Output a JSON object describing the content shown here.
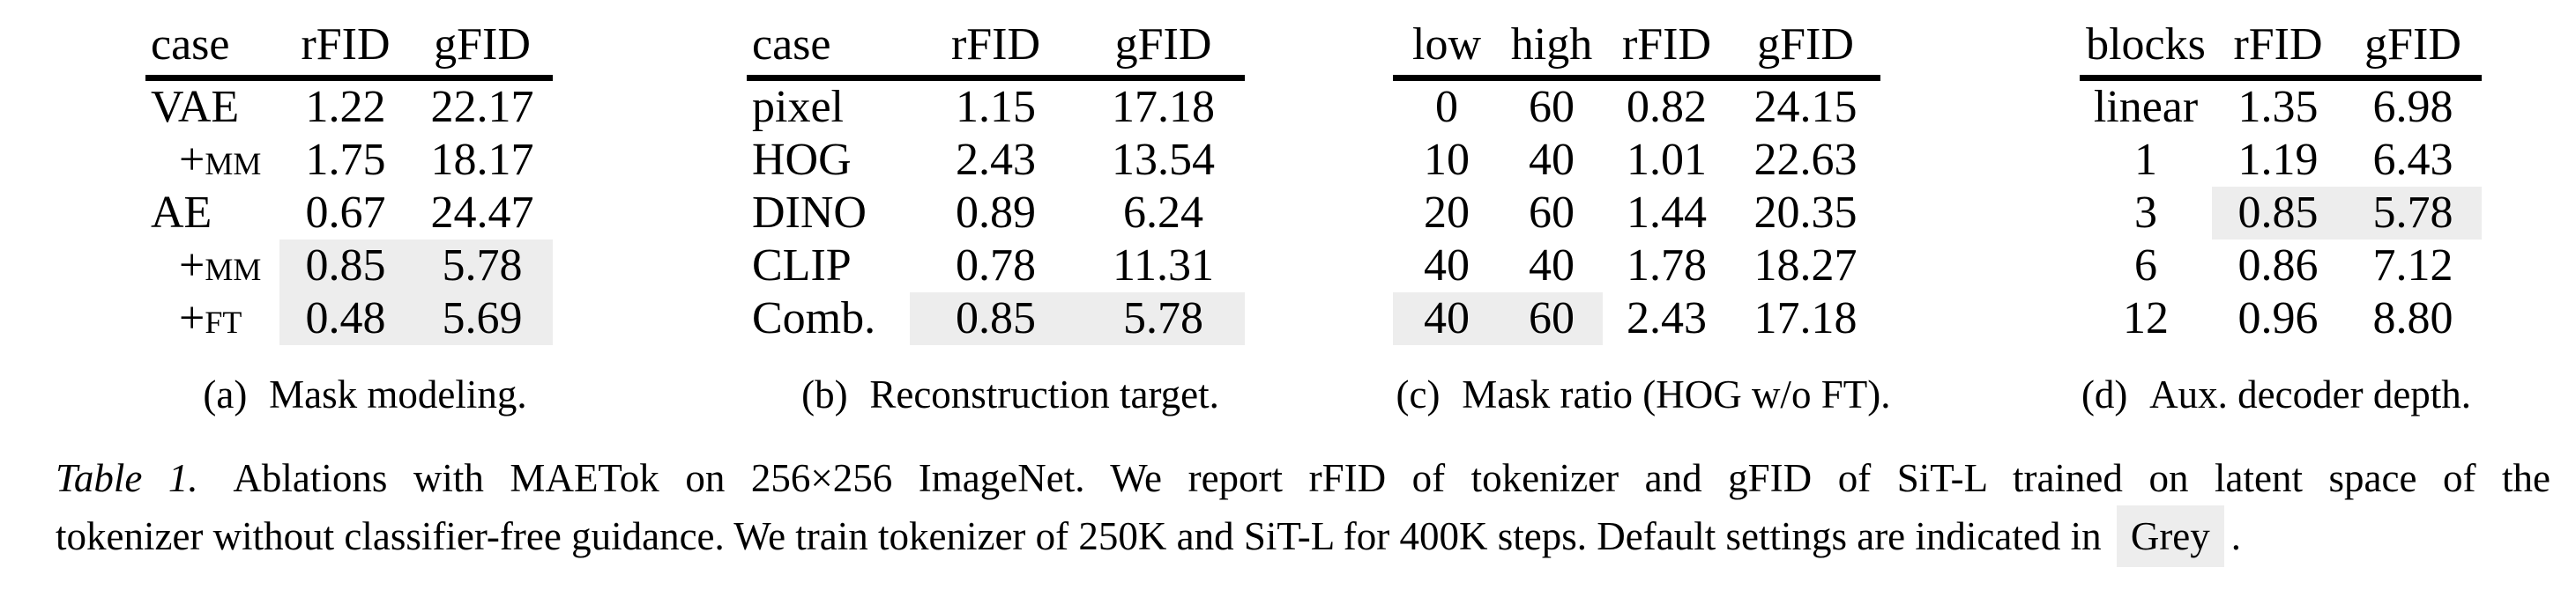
{
  "figure": {
    "subtables": [
      {
        "label": "(a)",
        "caption": "Mask modeling.",
        "headers": [
          "case",
          "rFID",
          "gFID"
        ],
        "rows": [
          [
            "VAE",
            "1.22",
            "22.17"
          ],
          [
            "+MM",
            "1.75",
            "18.17"
          ],
          [
            "AE",
            "0.67",
            "24.47"
          ],
          [
            "+MM",
            "0.85",
            "5.78"
          ],
          [
            "+FT",
            "0.48",
            "5.69"
          ]
        ],
        "highlighted_cells": [
          [
            3,
            1
          ],
          [
            3,
            2
          ],
          [
            4,
            1
          ],
          [
            4,
            2
          ]
        ]
      },
      {
        "label": "(b)",
        "caption": "Reconstruction target.",
        "headers": [
          "case",
          "rFID",
          "gFID"
        ],
        "rows": [
          [
            "pixel",
            "1.15",
            "17.18"
          ],
          [
            "HOG",
            "2.43",
            "13.54"
          ],
          [
            "DINO",
            "0.89",
            "6.24"
          ],
          [
            "CLIP",
            "0.78",
            "11.31"
          ],
          [
            "Comb.",
            "0.85",
            "5.78"
          ]
        ],
        "highlighted_cells": [
          [
            4,
            1
          ],
          [
            4,
            2
          ]
        ]
      },
      {
        "label": "(c)",
        "caption": "Mask ratio (HOG w/o FT).",
        "headers": [
          "low",
          "high",
          "rFID",
          "gFID"
        ],
        "rows": [
          [
            "0",
            "60",
            "0.82",
            "24.15"
          ],
          [
            "10",
            "40",
            "1.01",
            "22.63"
          ],
          [
            "20",
            "60",
            "1.44",
            "20.35"
          ],
          [
            "40",
            "40",
            "1.78",
            "18.27"
          ],
          [
            "40",
            "60",
            "2.43",
            "17.18"
          ]
        ],
        "highlighted_cells": [
          [
            4,
            0
          ],
          [
            4,
            1
          ]
        ]
      },
      {
        "label": "(d)",
        "caption": "Aux. decoder depth.",
        "headers": [
          "blocks",
          "rFID",
          "gFID"
        ],
        "rows": [
          [
            "linear",
            "1.35",
            "6.98"
          ],
          [
            "1",
            "1.19",
            "6.43"
          ],
          [
            "3",
            "0.85",
            "5.78"
          ],
          [
            "6",
            "0.86",
            "7.12"
          ],
          [
            "12",
            "0.96",
            "8.80"
          ]
        ],
        "highlighted_cells": [
          [
            2,
            1
          ],
          [
            2,
            2
          ]
        ]
      }
    ],
    "caption": {
      "label": "Table 1.",
      "line1_rest": "Ablations with MAETok on 256×256 ImageNet. We report rFID of tokenizer and gFID of SiT-L trained on latent space of the",
      "line2_before_grey": "tokenizer without classifier-free guidance. We train tokenizer of 250K and SiT-L for 400K steps. Default settings are indicated in",
      "grey_word": "Grey",
      "line2_after_grey": "."
    },
    "colors": {
      "highlight": "#ededed",
      "text": "#000000",
      "background": "#ffffff"
    }
  }
}
